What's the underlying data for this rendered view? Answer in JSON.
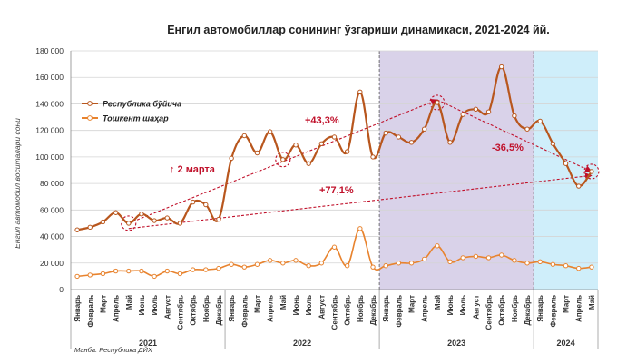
{
  "chart_data": {
    "type": "line",
    "title": "Енгил автомобиллар сонининг ўзгариши динамикаси, 2021-2024 йй.",
    "ylabel": "Енгил автомобил воситалари сони",
    "ylim": [
      0,
      180000
    ],
    "yticks": [
      "0",
      "20 000",
      "40 000",
      "60 000",
      "80 000",
      "100 000",
      "120 000",
      "140 000",
      "160 000",
      "180 000"
    ],
    "ytick_values": [
      0,
      20000,
      40000,
      60000,
      80000,
      100000,
      120000,
      140000,
      160000,
      180000
    ],
    "months": [
      "Январь",
      "Февраль",
      "Март",
      "Апрель",
      "Май",
      "Июнь",
      "Июль",
      "Август",
      "Сентябрь",
      "Октябрь",
      "Ноябрь",
      "Декабрь",
      "Январь",
      "Февраль",
      "Март",
      "Апрель",
      "Май",
      "Июнь",
      "Июль",
      "Август",
      "Сентябрь",
      "Октябрь",
      "Ноябрь",
      "Декабрь",
      "Январь",
      "Февраль",
      "Март",
      "Апрель",
      "Май",
      "Июнь",
      "Июль",
      "Август",
      "Сентябрь",
      "Октябрь",
      "Ноябрь",
      "Декабрь",
      "Январь",
      "Февраль",
      "Март",
      "Апрель",
      "Май"
    ],
    "years": [
      {
        "label": "2021",
        "start_index": 0,
        "end_index": 11
      },
      {
        "label": "2022",
        "start_index": 12,
        "end_index": 23
      },
      {
        "label": "2023",
        "start_index": 24,
        "end_index": 35
      },
      {
        "label": "2024",
        "start_index": 36,
        "end_index": 40
      }
    ],
    "legend_position": "top-left",
    "series": [
      {
        "name": "Республика бўйича",
        "color": "#b8561d",
        "values": [
          45000,
          47000,
          51000,
          58000,
          50000,
          57000,
          52000,
          54000,
          50000,
          66000,
          64000,
          53000,
          99000,
          116000,
          103000,
          119000,
          98000,
          109000,
          95000,
          110000,
          115000,
          104000,
          149000,
          100000,
          118000,
          115000,
          111000,
          121000,
          141000,
          111000,
          132000,
          136000,
          134000,
          168000,
          131000,
          121000,
          127000,
          110000,
          95000,
          78000,
          89000
        ]
      },
      {
        "name": "Тошкент шаҳар",
        "color": "#e8832e",
        "values": [
          10000,
          11000,
          12000,
          14000,
          14000,
          14000,
          10000,
          14000,
          12000,
          15000,
          15000,
          16000,
          19000,
          17000,
          19000,
          22000,
          20000,
          22000,
          18000,
          20000,
          32000,
          18000,
          46000,
          17000,
          18000,
          20000,
          20000,
          23000,
          33000,
          21000,
          24000,
          25000,
          24000,
          26000,
          22000,
          20000,
          21000,
          19000,
          18000,
          16000,
          17000
        ]
      }
    ],
    "shaded_regions": [
      {
        "label": "2023",
        "start_index": 24,
        "end_index": 35,
        "color": "#d9d2e9"
      },
      {
        "label": "2024",
        "start_index": 36,
        "end_index": 40,
        "color": "#cfeefa"
      }
    ],
    "annotations": [
      {
        "text": "+43,3%",
        "color": "#c0102a",
        "from_index": 4,
        "from_value": 50000,
        "to_index": 28,
        "to_value": 143000
      },
      {
        "text": "-36,5%",
        "color": "#c0102a",
        "from_index": 28,
        "from_value": 143000,
        "to_index": 40,
        "to_value": 89000
      },
      {
        "text": "+77,1%",
        "color": "#c0102a",
        "from_index": 4,
        "from_value": 46000,
        "to_index": 40,
        "to_value": 86000
      },
      {
        "text": "↑ 2 марта",
        "color": "#c0102a"
      }
    ],
    "circled_points": [
      {
        "index": 4,
        "value": 50000
      },
      {
        "index": 16,
        "value": 98000
      },
      {
        "index": 28,
        "value": 141000
      },
      {
        "index": 40,
        "value": 89000
      }
    ],
    "source": "Манба: Республика ДЙХ"
  }
}
